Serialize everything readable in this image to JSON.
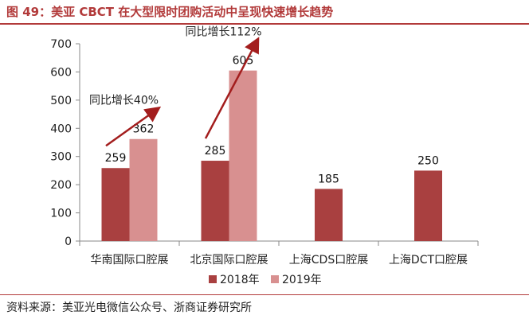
{
  "figure": {
    "title": "图 49：美亚 CBCT 在大型限时团购活动中呈现快速增长趋势",
    "source": "资料来源：美亚光电微信公众号、浙商证券研究所"
  },
  "chart_data": {
    "type": "bar",
    "categories": [
      "华南国际口腔展",
      "北京国际口腔展",
      "上海CDS口腔展",
      "上海DCT口腔展"
    ],
    "series": [
      {
        "name": "2018年",
        "color": "#a94040",
        "values": [
          259,
          285,
          185,
          250
        ]
      },
      {
        "name": "2019年",
        "color": "#d89090",
        "values": [
          362,
          605,
          null,
          null
        ]
      }
    ],
    "ylim": [
      0,
      700
    ],
    "yticks": [
      0,
      100,
      200,
      300,
      400,
      500,
      600,
      700
    ],
    "legend_position": "bottom-center",
    "annotations": [
      {
        "text": "同比增长40%",
        "category_index": 0,
        "arrow_color": "#a31d1d"
      },
      {
        "text": "同比增长112%",
        "category_index": 1,
        "arrow_color": "#a31d1d"
      }
    ]
  }
}
